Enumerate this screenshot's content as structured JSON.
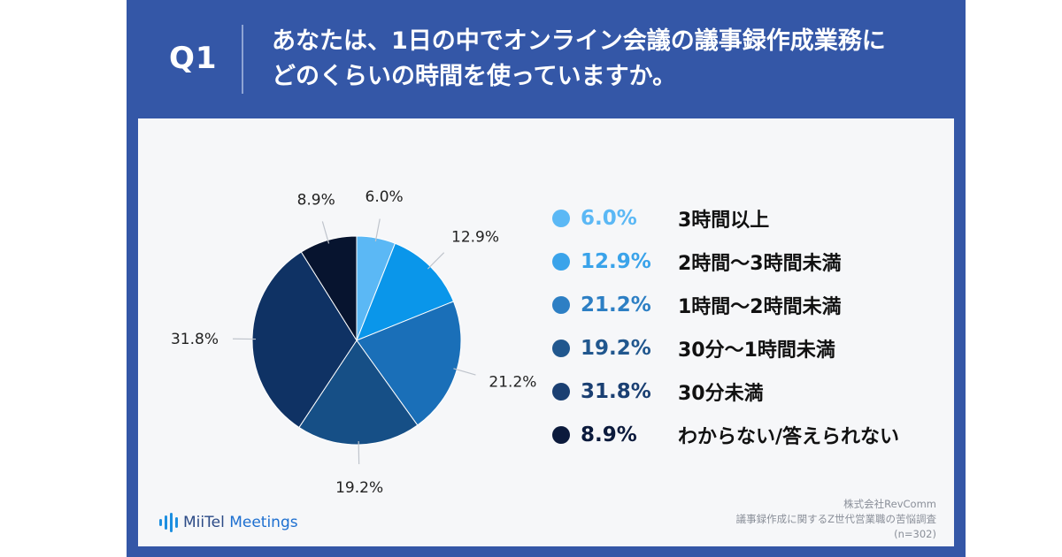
{
  "header": {
    "q_label": "Q1",
    "question_line1": "あなたは、1日の中でオンライン会議の議事録作成業務に",
    "question_line2": "どのくらいの時間を使っていますか。"
  },
  "chart_data": {
    "type": "pie",
    "title": "",
    "legend_position": "right",
    "slices": [
      {
        "label": "3時間以上",
        "value": 6.0,
        "display": "6.0%",
        "color": "#5bb8f5"
      },
      {
        "label": "2時間〜3時間未満",
        "value": 12.9,
        "display": "12.9%",
        "color": "#0a96ea"
      },
      {
        "label": "1時間〜2時間未満",
        "value": 21.2,
        "display": "21.2%",
        "color": "#1a6fb8"
      },
      {
        "label": "30分〜1時間未満",
        "value": 19.2,
        "display": "19.2%",
        "color": "#164f86"
      },
      {
        "label": "30分未満",
        "value": 31.8,
        "display": "31.8%",
        "color": "#0f3264"
      },
      {
        "label": "わからない/答えられない",
        "value": 8.9,
        "display": "8.9%",
        "color": "#07142f"
      }
    ]
  },
  "legend_colors": {
    "value_text": [
      "#5bb8f5",
      "#3aa3ea",
      "#2d7fc4",
      "#21578e",
      "#1a3f72",
      "#0b1a3c"
    ]
  },
  "branding": {
    "logo_prefix": "MiiTel",
    "logo_suffix": " Meetings",
    "logo_icon": "waveform-icon"
  },
  "source": {
    "company": "株式会社RevComm",
    "survey": "議事録作成に関するZ世代営業職の苦悩調査",
    "sample": "(n=302)"
  }
}
